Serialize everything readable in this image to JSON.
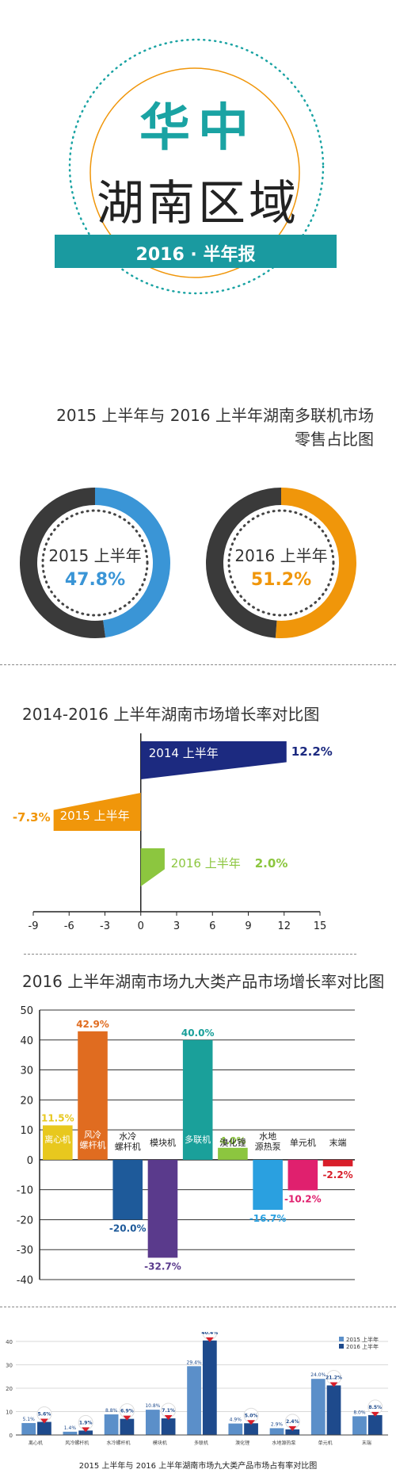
{
  "header": {
    "title_main": "华中",
    "title_sub": "湖南区域",
    "report": "2016 · 半年报",
    "accent": "#1a9aa0",
    "title_color": "#1aa3a3"
  },
  "section1": {
    "title_line1": "2015 上半年与 2016 上半年湖南多联机市场",
    "title_line2": "零售占比图",
    "donuts": [
      {
        "year": "2015 上半年",
        "value_label": "47.8%",
        "value": 47.8,
        "color": "#3a95d6"
      },
      {
        "year": "2016 上半年",
        "value_label": "51.2%",
        "value": 51.2,
        "color": "#f0960a"
      }
    ],
    "rest_color": "#3a3a3a"
  },
  "chart_data": [
    {
      "type": "bar",
      "title": "2014-2016 上半年湖南市场增长率对比图",
      "orientation": "horizontal",
      "categories": [
        "2014 上半年",
        "2015 上半年",
        "2016 上半年"
      ],
      "values": [
        12.2,
        -7.3,
        2.0
      ],
      "value_labels": [
        "12.2%",
        "-7.3%",
        "2.0%"
      ],
      "colors": [
        "#1c2a80",
        "#f0960a",
        "#8cc63f"
      ],
      "xlim": [
        -9,
        15
      ],
      "xticks": [
        "-9",
        "-6",
        "-3",
        "0",
        "3",
        "6",
        "9",
        "12",
        "15"
      ]
    },
    {
      "type": "bar",
      "title": "2016 上半年湖南市场九大类产品市场增长率对比图",
      "categories": [
        "离心机",
        "风冷螺杆机",
        "水冷螺杆机",
        "模块机",
        "多联机",
        "溴化锂",
        "水地源热泵",
        "单元机",
        "末端"
      ],
      "values": [
        11.5,
        42.9,
        -20.0,
        -32.7,
        40.0,
        4.0,
        -16.7,
        -10.2,
        -2.2
      ],
      "value_labels": [
        "11.5%",
        "42.9%",
        "-20.0%",
        "-32.7%",
        "40.0%",
        "4.0%",
        "-16.7%",
        "-10.2%",
        "-2.2%"
      ],
      "colors": [
        "#e8c81e",
        "#e06c20",
        "#1e5a9a",
        "#5a3a8c",
        "#1aa09a",
        "#8cc63f",
        "#2aa0e0",
        "#e0206e",
        "#d81e2a"
      ],
      "ylim": [
        -40,
        50
      ],
      "yticks": [
        "50",
        "40",
        "30",
        "20",
        "10",
        "0",
        "-10",
        "-20",
        "-30",
        "-40"
      ]
    },
    {
      "type": "bar",
      "title": "2015 上半年与 2016 上半年湖南市场九大类产品市场占有率对比图",
      "categories": [
        "离心机",
        "风冷螺杆机",
        "水冷螺杆机",
        "模块机",
        "多联机",
        "溴化锂",
        "水地源热泵",
        "单元机",
        "末端"
      ],
      "series": [
        {
          "name": "2015 上半年",
          "values": [
            5.1,
            1.4,
            8.8,
            10.8,
            29.4,
            4.9,
            2.9,
            24.0,
            8.0
          ],
          "labels": [
            "5.1%",
            "1.4%",
            "8.8%",
            "10.8%",
            "29.4%",
            "4.9%",
            "2.9%",
            "24.0%",
            "8.0%"
          ],
          "color": "#5b8fc9"
        },
        {
          "name": "2016 上半年",
          "values": [
            5.6,
            1.9,
            6.9,
            7.1,
            40.4,
            5.0,
            2.4,
            21.2,
            8.5
          ],
          "labels": [
            "5.6%",
            "1.9%",
            "6.9%",
            "7.1%",
            "40.4%",
            "5.0%",
            "2.4%",
            "21.2%",
            "8.5%"
          ],
          "color": "#1e4a8c"
        }
      ],
      "ylim": [
        0,
        40
      ],
      "yticks": [
        "40",
        "30",
        "20",
        "10",
        "0"
      ]
    }
  ]
}
